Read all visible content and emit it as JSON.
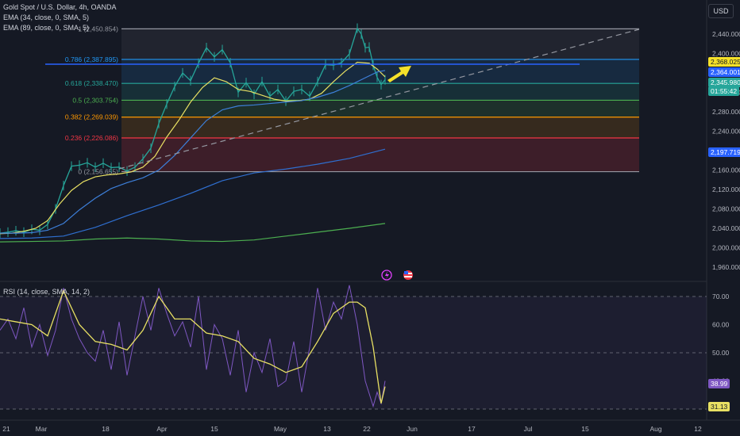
{
  "header": {
    "symbol_title": "Gold Spot / U.S. Dollar, 4h, OANDA",
    "ema1": "EMA (34, close, 0, SMA, 5)",
    "ema2": "EMA (89, close, 0, SMA, 5)",
    "currency": "USD",
    "rsi_title": "RSI (14, close, SMA, 14, 2)"
  },
  "price_tags": {
    "tag_2368": "2,368.025",
    "tag_2364": "2,364.001",
    "tag_2345": "2,345.980",
    "tag_countdown": "01:55:42",
    "tag_2197": "2,197.719",
    "rsi_38": "38.99",
    "rsi_31": "31.13"
  },
  "colors": {
    "background": "#151924",
    "up": "#26a69a",
    "ema34": "#e8e063",
    "ema89": "#3d7fd9",
    "ema_long": "#2f6fd0",
    "ema_slow": "#4caf50",
    "rsi": "#7e57c2",
    "rsi_ma": "#e8e063",
    "arrow": "#f5e12a"
  },
  "chart_data": [
    {
      "type": "line",
      "title": "Gold Spot / U.S. Dollar, 4h, OANDA",
      "yaxis_ticks": [
        "2,440.000",
        "2,400.000",
        "2,360.000",
        "2,320.000",
        "2,280.000",
        "2,240.000",
        "2,200.000",
        "2,160.000",
        "2,120.000",
        "2,080.000",
        "2,040.000",
        "2,000.000",
        "1,960.000"
      ],
      "ylim": [
        1945,
        2490
      ],
      "xaxis_ticks": [
        "21",
        "Mar",
        "18",
        "Apr",
        "15",
        "May",
        "13",
        "22",
        "Jun",
        "17",
        "Jul",
        "15",
        "Aug",
        "12"
      ],
      "fibonacci": [
        {
          "level": "1",
          "price": "2,450.854",
          "value": 2450.854,
          "color": "#9598a1"
        },
        {
          "level": "0.786",
          "price": "2,387.895",
          "value": 2387.895,
          "color": "#2196f3"
        },
        {
          "level": "0.618",
          "price": "2,338.470",
          "value": 2338.47,
          "color": "#26a69a"
        },
        {
          "level": "0.5",
          "price": "2,303.754",
          "value": 2303.754,
          "color": "#4caf50"
        },
        {
          "level": "0.382",
          "price": "2,269.039",
          "value": 2269.039,
          "color": "#ff9800"
        },
        {
          "level": "0.236",
          "price": "2,226.086",
          "value": 2226.086,
          "color": "#f23645"
        },
        {
          "level": "0",
          "price": "2,156.655",
          "value": 2156.655,
          "color": "#9598a1"
        }
      ],
      "series": [
        {
          "name": "EMA (34, close, 0, SMA, 5)",
          "x": [
            0,
            15,
            30,
            45,
            60,
            75,
            90,
            105,
            120,
            135,
            150,
            165,
            180,
            195,
            210,
            225,
            240,
            255,
            270,
            285,
            300,
            315,
            330,
            345,
            360,
            375,
            390,
            405,
            420,
            435,
            450,
            465,
            475,
            485
          ],
          "values": [
            2029,
            2030,
            2034,
            2040,
            2056,
            2090,
            2118,
            2136,
            2146,
            2150,
            2152,
            2156,
            2166,
            2188,
            2228,
            2262,
            2300,
            2330,
            2350,
            2342,
            2326,
            2322,
            2314,
            2306,
            2302,
            2303,
            2306,
            2318,
            2342,
            2364,
            2382,
            2380,
            2368,
            2352
          ]
        },
        {
          "name": "EMA (89, close, 0, SMA, 5)",
          "x": [
            0,
            20,
            40,
            60,
            80,
            100,
            120,
            140,
            160,
            180,
            200,
            220,
            240,
            260,
            280,
            300,
            320,
            340,
            360,
            380,
            400,
            420,
            440,
            460,
            475,
            485
          ],
          "values": [
            2030,
            2030,
            2031,
            2036,
            2050,
            2078,
            2102,
            2122,
            2134,
            2144,
            2160,
            2190,
            2226,
            2262,
            2284,
            2292,
            2294,
            2297,
            2300,
            2303,
            2310,
            2320,
            2334,
            2350,
            2362,
            2365
          ]
        },
        {
          "name": "EMA slow 1",
          "x": [
            0,
            40,
            80,
            120,
            160,
            200,
            240,
            280,
            320,
            360,
            400,
            440,
            485
          ],
          "values": [
            2019,
            2020,
            2024,
            2042,
            2066,
            2088,
            2112,
            2138,
            2154,
            2162,
            2172,
            2184,
            2203
          ]
        },
        {
          "name": "EMA slow 2",
          "x": [
            0,
            40,
            80,
            120,
            160,
            200,
            240,
            280,
            320,
            360,
            400,
            440,
            485
          ],
          "values": [
            2012,
            2013,
            2014,
            2018,
            2020,
            2018,
            2014,
            2013,
            2016,
            2024,
            2032,
            2040,
            2050
          ]
        },
        {
          "name": "Price",
          "x": [
            0,
            10,
            20,
            30,
            40,
            50,
            60,
            70,
            80,
            90,
            100,
            110,
            120,
            130,
            140,
            150,
            160,
            170,
            180,
            190,
            200,
            210,
            220,
            230,
            240,
            250,
            260,
            270,
            280,
            290,
            300,
            310,
            320,
            330,
            340,
            350,
            360,
            370,
            380,
            390,
            400,
            410,
            420,
            430,
            440,
            450,
            455,
            460,
            465,
            470,
            475,
            480,
            485
          ],
          "values": [
            2030,
            2032,
            2035,
            2032,
            2038,
            2036,
            2048,
            2080,
            2128,
            2168,
            2170,
            2175,
            2166,
            2174,
            2165,
            2166,
            2158,
            2166,
            2183,
            2205,
            2256,
            2296,
            2332,
            2360,
            2344,
            2380,
            2412,
            2393,
            2408,
            2381,
            2320,
            2340,
            2316,
            2342,
            2312,
            2326,
            2302,
            2322,
            2326,
            2312,
            2342,
            2377,
            2376,
            2381,
            2399,
            2452,
            2440,
            2412,
            2413,
            2376,
            2351,
            2336,
            2346
          ]
        }
      ]
    },
    {
      "type": "line",
      "title": "RSI (14, close, SMA, 14, 2)",
      "yaxis_ticks": [
        "70.00",
        "60.00",
        "50.00",
        "40.00",
        "30.00"
      ],
      "ylim": [
        28,
        74
      ],
      "series": [
        {
          "name": "RSI",
          "x": [
            0,
            10,
            20,
            30,
            40,
            50,
            60,
            70,
            80,
            90,
            100,
            110,
            120,
            130,
            140,
            150,
            160,
            170,
            180,
            190,
            200,
            210,
            220,
            230,
            240,
            250,
            260,
            270,
            280,
            290,
            300,
            310,
            320,
            330,
            340,
            350,
            360,
            370,
            380,
            390,
            400,
            410,
            420,
            430,
            440,
            450,
            460,
            470,
            475,
            480,
            485
          ],
          "values": [
            58,
            62,
            55,
            66,
            52,
            60,
            49,
            58,
            73,
            62,
            55,
            50,
            47,
            58,
            44,
            61,
            42,
            56,
            70,
            58,
            73,
            64,
            56,
            61,
            52,
            70,
            44,
            60,
            55,
            42,
            58,
            36,
            50,
            43,
            55,
            38,
            40,
            54,
            36,
            52,
            73,
            58,
            68,
            62,
            74,
            60,
            40,
            31,
            36,
            32,
            40
          ]
        },
        {
          "name": "RSI MA",
          "x": [
            0,
            20,
            40,
            60,
            80,
            100,
            120,
            140,
            160,
            180,
            200,
            220,
            240,
            260,
            280,
            300,
            320,
            340,
            360,
            380,
            400,
            420,
            440,
            450,
            460,
            470,
            480,
            485
          ],
          "values": [
            62,
            61,
            60,
            56,
            72,
            60,
            54,
            53,
            51,
            58,
            70,
            62,
            62,
            57,
            56,
            54,
            48,
            46,
            43,
            45,
            54,
            64,
            68,
            68,
            66,
            52,
            32,
            38
          ]
        }
      ],
      "bands": [
        70,
        50,
        30
      ]
    }
  ]
}
